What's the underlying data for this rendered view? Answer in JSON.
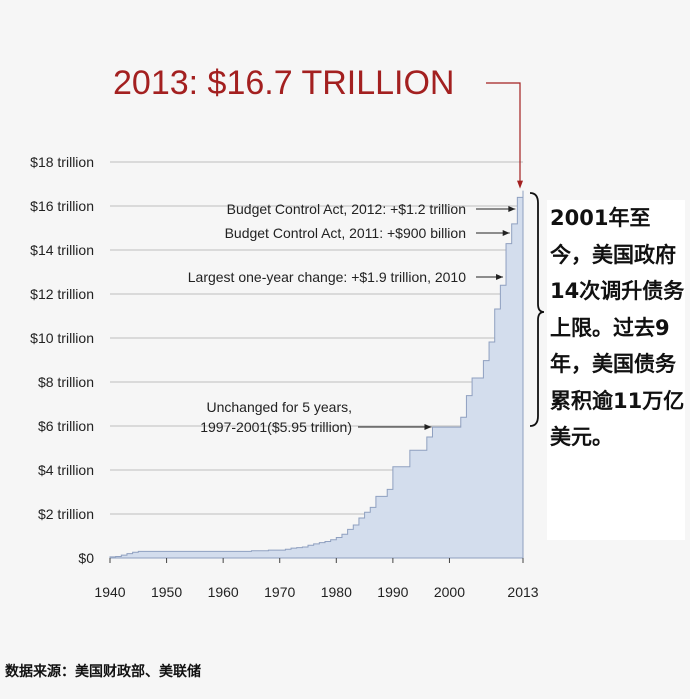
{
  "headline": "2013: $16.7 TRILLION",
  "side_note": "2001年至今，美国政府14次调升债务上限。过去9年，美国债务累积逾11万亿美元。",
  "source": "数据来源：美国财政部、美联储",
  "colors": {
    "headline": "#a32020",
    "area_fill": "#d3dded",
    "area_stroke": "#8fa0c0",
    "grid": "#bdbdbd",
    "background": "#f6f6f6"
  },
  "chart_data": {
    "type": "area",
    "step": true,
    "x_ticks": [
      1940,
      1950,
      1960,
      1970,
      1980,
      1990,
      2000,
      2013
    ],
    "y_ticks": [
      {
        "value": 0,
        "label": "$0"
      },
      {
        "value": 2,
        "label": "$2 trillion"
      },
      {
        "value": 4,
        "label": "$4 trillion"
      },
      {
        "value": 6,
        "label": "$6 trillion"
      },
      {
        "value": 8,
        "label": "$8 trillion"
      },
      {
        "value": 10,
        "label": "$10 trillion"
      },
      {
        "value": 12,
        "label": "$12 trillion"
      },
      {
        "value": 14,
        "label": "$14 trillion"
      },
      {
        "value": 16,
        "label": "$16 trillion"
      },
      {
        "value": 18,
        "label": "$18 trillion"
      }
    ],
    "xlim": [
      1940,
      2013
    ],
    "ylim": [
      0,
      18
    ],
    "grid": "horizontal",
    "series": [
      {
        "points": [
          [
            1940,
            0.05
          ],
          [
            1941,
            0.07
          ],
          [
            1942,
            0.13
          ],
          [
            1943,
            0.2
          ],
          [
            1944,
            0.26
          ],
          [
            1945,
            0.3
          ],
          [
            1955,
            0.3
          ],
          [
            1965,
            0.33
          ],
          [
            1968,
            0.36
          ],
          [
            1971,
            0.4
          ],
          [
            1972,
            0.45
          ],
          [
            1973,
            0.47
          ],
          [
            1974,
            0.5
          ],
          [
            1975,
            0.58
          ],
          [
            1976,
            0.64
          ],
          [
            1977,
            0.7
          ],
          [
            1978,
            0.75
          ],
          [
            1979,
            0.83
          ],
          [
            1980,
            0.93
          ],
          [
            1981,
            1.08
          ],
          [
            1982,
            1.3
          ],
          [
            1983,
            1.5
          ],
          [
            1984,
            1.82
          ],
          [
            1985,
            2.08
          ],
          [
            1986,
            2.3
          ],
          [
            1987,
            2.8
          ],
          [
            1988,
            2.8
          ],
          [
            1989,
            3.12
          ],
          [
            1990,
            4.15
          ],
          [
            1991,
            4.15
          ],
          [
            1993,
            4.9
          ],
          [
            1996,
            5.5
          ],
          [
            1997,
            5.95
          ],
          [
            2002,
            6.4
          ],
          [
            2003,
            7.38
          ],
          [
            2004,
            8.18
          ],
          [
            2006,
            8.97
          ],
          [
            2007,
            9.82
          ],
          [
            2008,
            11.32
          ],
          [
            2009,
            12.4
          ],
          [
            2010,
            14.29
          ],
          [
            2011,
            15.19
          ],
          [
            2012,
            16.39
          ],
          [
            2013,
            16.7
          ]
        ]
      }
    ],
    "annotations": [
      {
        "text": "Budget Control Act, 2012: +$1.2 trillion",
        "x": 2012,
        "y": 16.39
      },
      {
        "text": "Budget Control Act, 2011: +$900 billion",
        "x": 2011,
        "y": 15.19
      },
      {
        "text": "Largest one-year change: +$1.9 trillion, 2010",
        "x": 2010,
        "y": 12.4
      },
      {
        "text_lines": [
          "Unchanged for 5 years,",
          "1997-2001($5.95 trillion)"
        ],
        "x": 1997,
        "y": 5.95
      }
    ]
  }
}
